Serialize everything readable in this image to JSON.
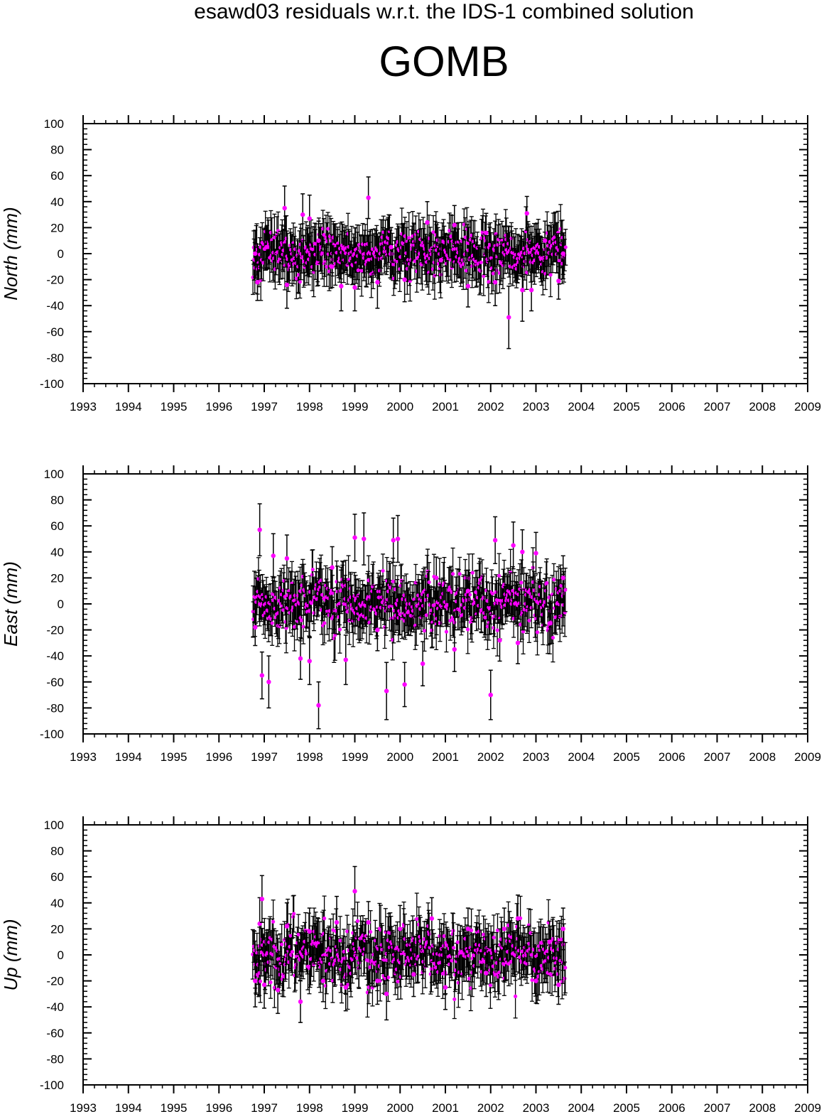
{
  "title": "esawd03 residuals w.r.t. the IDS-1 combined solution",
  "station": "GOMB",
  "colors": {
    "point": "#ff00ff",
    "errorbar": "#000000",
    "axis": "#000000"
  },
  "chart_data": [
    {
      "type": "scatter",
      "ylabel": "North (mm)",
      "xlim": [
        1993,
        2009
      ],
      "ylim": [
        -100,
        100
      ],
      "xticks": [
        "1993",
        "1994",
        "1995",
        "1996",
        "1997",
        "1998",
        "1999",
        "2000",
        "2001",
        "2002",
        "2003",
        "2004",
        "2005",
        "2006",
        "2007",
        "2008",
        "2009"
      ],
      "yticks": [
        "100",
        "80",
        "60",
        "40",
        "20",
        "0",
        "-20",
        "-40",
        "-60",
        "-80",
        "-100"
      ],
      "data_span": [
        1996.75,
        2003.65
      ],
      "errorbars": true,
      "points": [
        {
          "x": 1996.8,
          "y": 0,
          "err": 18
        },
        {
          "x": 1996.85,
          "y": -22,
          "err": 14
        },
        {
          "x": 1997.05,
          "y": 5,
          "err": 16
        },
        {
          "x": 1997.45,
          "y": 35,
          "err": 17
        },
        {
          "x": 1997.5,
          "y": -24,
          "err": 18
        },
        {
          "x": 1997.85,
          "y": 30,
          "err": 16
        },
        {
          "x": 1998.0,
          "y": 27,
          "err": 18
        },
        {
          "x": 1998.2,
          "y": 10,
          "err": 15
        },
        {
          "x": 1998.5,
          "y": -10,
          "err": 16
        },
        {
          "x": 1998.7,
          "y": -25,
          "err": 19
        },
        {
          "x": 1999.0,
          "y": -26,
          "err": 18
        },
        {
          "x": 1999.3,
          "y": 43,
          "err": 16
        },
        {
          "x": 1999.5,
          "y": -22,
          "err": 20
        },
        {
          "x": 1999.8,
          "y": 5,
          "err": 15
        },
        {
          "x": 2000.1,
          "y": -20,
          "err": 17
        },
        {
          "x": 2000.6,
          "y": 24,
          "err": 16
        },
        {
          "x": 2000.9,
          "y": -5,
          "err": 17
        },
        {
          "x": 2001.2,
          "y": 22,
          "err": 15
        },
        {
          "x": 2001.5,
          "y": -25,
          "err": 16
        },
        {
          "x": 2001.9,
          "y": 16,
          "err": 15
        },
        {
          "x": 2002.1,
          "y": -22,
          "err": 18
        },
        {
          "x": 2002.4,
          "y": -49,
          "err": 24
        },
        {
          "x": 2002.7,
          "y": -28,
          "err": 24
        },
        {
          "x": 2002.8,
          "y": 31,
          "err": 13
        },
        {
          "x": 2002.9,
          "y": -28,
          "err": 16
        },
        {
          "x": 2003.2,
          "y": 10,
          "err": 15
        },
        {
          "x": 2003.5,
          "y": -21,
          "err": 14
        },
        {
          "x": 2003.6,
          "y": 0,
          "err": 16
        }
      ]
    },
    {
      "type": "scatter",
      "ylabel": "East (mm)",
      "xlim": [
        1993,
        2009
      ],
      "ylim": [
        -100,
        100
      ],
      "xticks": [
        "1993",
        "1994",
        "1995",
        "1996",
        "1997",
        "1998",
        "1999",
        "2000",
        "2001",
        "2002",
        "2003",
        "2004",
        "2005",
        "2006",
        "2007",
        "2008",
        "2009"
      ],
      "yticks": [
        "100",
        "80",
        "60",
        "40",
        "20",
        "0",
        "-20",
        "-40",
        "-60",
        "-80",
        "-100"
      ],
      "data_span": [
        1996.75,
        2003.65
      ],
      "errorbars": true,
      "points": [
        {
          "x": 1996.8,
          "y": -18,
          "err": 14
        },
        {
          "x": 1996.9,
          "y": 57,
          "err": 20
        },
        {
          "x": 1996.95,
          "y": -55,
          "err": 18
        },
        {
          "x": 1997.1,
          "y": -60,
          "err": 20
        },
        {
          "x": 1997.2,
          "y": 37,
          "err": 17
        },
        {
          "x": 1997.5,
          "y": 35,
          "err": 18
        },
        {
          "x": 1997.8,
          "y": -42,
          "err": 16
        },
        {
          "x": 1998.0,
          "y": -44,
          "err": 18
        },
        {
          "x": 1998.2,
          "y": -78,
          "err": 18
        },
        {
          "x": 1998.5,
          "y": 28,
          "err": 16
        },
        {
          "x": 1998.8,
          "y": -43,
          "err": 19
        },
        {
          "x": 1999.0,
          "y": 51,
          "err": 18
        },
        {
          "x": 1999.2,
          "y": 50,
          "err": 20
        },
        {
          "x": 1999.5,
          "y": -20,
          "err": 16
        },
        {
          "x": 1999.7,
          "y": -67,
          "err": 22
        },
        {
          "x": 1999.85,
          "y": 49,
          "err": 17
        },
        {
          "x": 1999.95,
          "y": 50,
          "err": 18
        },
        {
          "x": 2000.1,
          "y": -62,
          "err": 17
        },
        {
          "x": 2000.5,
          "y": -46,
          "err": 17
        },
        {
          "x": 2000.8,
          "y": 20,
          "err": 16
        },
        {
          "x": 2001.2,
          "y": -35,
          "err": 17
        },
        {
          "x": 2001.5,
          "y": 10,
          "err": 16
        },
        {
          "x": 2002.0,
          "y": -70,
          "err": 19
        },
        {
          "x": 2002.1,
          "y": 49,
          "err": 18
        },
        {
          "x": 2002.2,
          "y": -28,
          "err": 16
        },
        {
          "x": 2002.5,
          "y": 45,
          "err": 18
        },
        {
          "x": 2002.6,
          "y": -30,
          "err": 16
        },
        {
          "x": 2002.7,
          "y": 40,
          "err": 17
        },
        {
          "x": 2003.0,
          "y": 39,
          "err": 16
        },
        {
          "x": 2003.3,
          "y": -15,
          "err": 16
        },
        {
          "x": 2003.6,
          "y": 20,
          "err": 17
        }
      ]
    },
    {
      "type": "scatter",
      "ylabel": "Up (mm)",
      "xlim": [
        1993,
        2009
      ],
      "ylim": [
        -100,
        100
      ],
      "xticks": [
        "1993",
        "1994",
        "1995",
        "1996",
        "1997",
        "1998",
        "1999",
        "2000",
        "2001",
        "2002",
        "2003",
        "2004",
        "2005",
        "2006",
        "2007",
        "2008",
        "2009"
      ],
      "yticks": [
        "100",
        "80",
        "60",
        "40",
        "20",
        "0",
        "-20",
        "-40",
        "-60",
        "-80",
        "-100"
      ],
      "data_span": [
        1996.75,
        2003.65
      ],
      "errorbars": true,
      "points": [
        {
          "x": 1996.8,
          "y": -20,
          "err": 20
        },
        {
          "x": 1996.9,
          "y": 24,
          "err": 20
        },
        {
          "x": 1996.95,
          "y": 43,
          "err": 18
        },
        {
          "x": 1997.0,
          "y": -23,
          "err": 18
        },
        {
          "x": 1997.3,
          "y": -27,
          "err": 18
        },
        {
          "x": 1997.5,
          "y": 22,
          "err": 18
        },
        {
          "x": 1997.8,
          "y": -36,
          "err": 16
        },
        {
          "x": 1998.0,
          "y": 18,
          "err": 18
        },
        {
          "x": 1998.3,
          "y": -20,
          "err": 16
        },
        {
          "x": 1998.6,
          "y": 25,
          "err": 20
        },
        {
          "x": 1998.8,
          "y": -25,
          "err": 18
        },
        {
          "x": 1999.0,
          "y": 49,
          "err": 19
        },
        {
          "x": 1999.3,
          "y": 25,
          "err": 16
        },
        {
          "x": 1999.5,
          "y": -20,
          "err": 18
        },
        {
          "x": 1999.7,
          "y": -30,
          "err": 20
        },
        {
          "x": 2000.0,
          "y": 20,
          "err": 18
        },
        {
          "x": 2000.3,
          "y": -15,
          "err": 17
        },
        {
          "x": 2000.7,
          "y": 28,
          "err": 16
        },
        {
          "x": 2001.0,
          "y": -25,
          "err": 17
        },
        {
          "x": 2001.5,
          "y": 20,
          "err": 16
        },
        {
          "x": 2001.9,
          "y": -14,
          "err": 18
        },
        {
          "x": 2002.3,
          "y": 20,
          "err": 16
        },
        {
          "x": 2002.6,
          "y": 28,
          "err": 18
        },
        {
          "x": 2003.0,
          "y": -20,
          "err": 17
        },
        {
          "x": 2003.3,
          "y": 10,
          "err": 16
        },
        {
          "x": 2003.5,
          "y": -23,
          "err": 15
        },
        {
          "x": 2003.6,
          "y": 20,
          "err": 16
        }
      ]
    }
  ]
}
